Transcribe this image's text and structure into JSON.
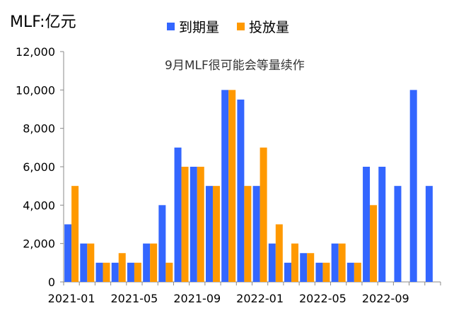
{
  "chart_data": {
    "type": "bar",
    "unit_label": "MLF:亿元",
    "annotation": "9月MLF很可能会等量续作",
    "categories": [
      "2021-01",
      "2021-02",
      "2021-03",
      "2021-04",
      "2021-05",
      "2021-06",
      "2021-07",
      "2021-08",
      "2021-09",
      "2021-10",
      "2021-11",
      "2021-12",
      "2022-01",
      "2022-02",
      "2022-03",
      "2022-04",
      "2022-05",
      "2022-06",
      "2022-07",
      "2022-08",
      "2022-09",
      "2022-10",
      "2022-11",
      "2022-12"
    ],
    "x_tick_labels": [
      "2021-01",
      "2021-05",
      "2021-09",
      "2022-01",
      "2022-05",
      "2022-09"
    ],
    "series": [
      {
        "name": "到期量",
        "color": "#3366FF",
        "values": [
          3000,
          2000,
          1000,
          1000,
          1000,
          2000,
          4000,
          7000,
          6000,
          5000,
          10000,
          9500,
          5000,
          2000,
          1000,
          1500,
          1000,
          2000,
          1000,
          6000,
          6000,
          5000,
          10000,
          5000
        ]
      },
      {
        "name": "投放量",
        "color": "#FF9900",
        "values": [
          5000,
          2000,
          1000,
          1500,
          1000,
          2000,
          1000,
          6000,
          6000,
          5000,
          10000,
          5000,
          7000,
          3000,
          2000,
          1500,
          1000,
          2000,
          1000,
          4000,
          null,
          null,
          null,
          null
        ]
      }
    ],
    "ylim": [
      0,
      12000
    ],
    "y_ticks": [
      "0",
      "2,000",
      "4,000",
      "6,000",
      "8,000",
      "10,000",
      "12,000"
    ],
    "legend_position": "top-center",
    "grid": false
  }
}
